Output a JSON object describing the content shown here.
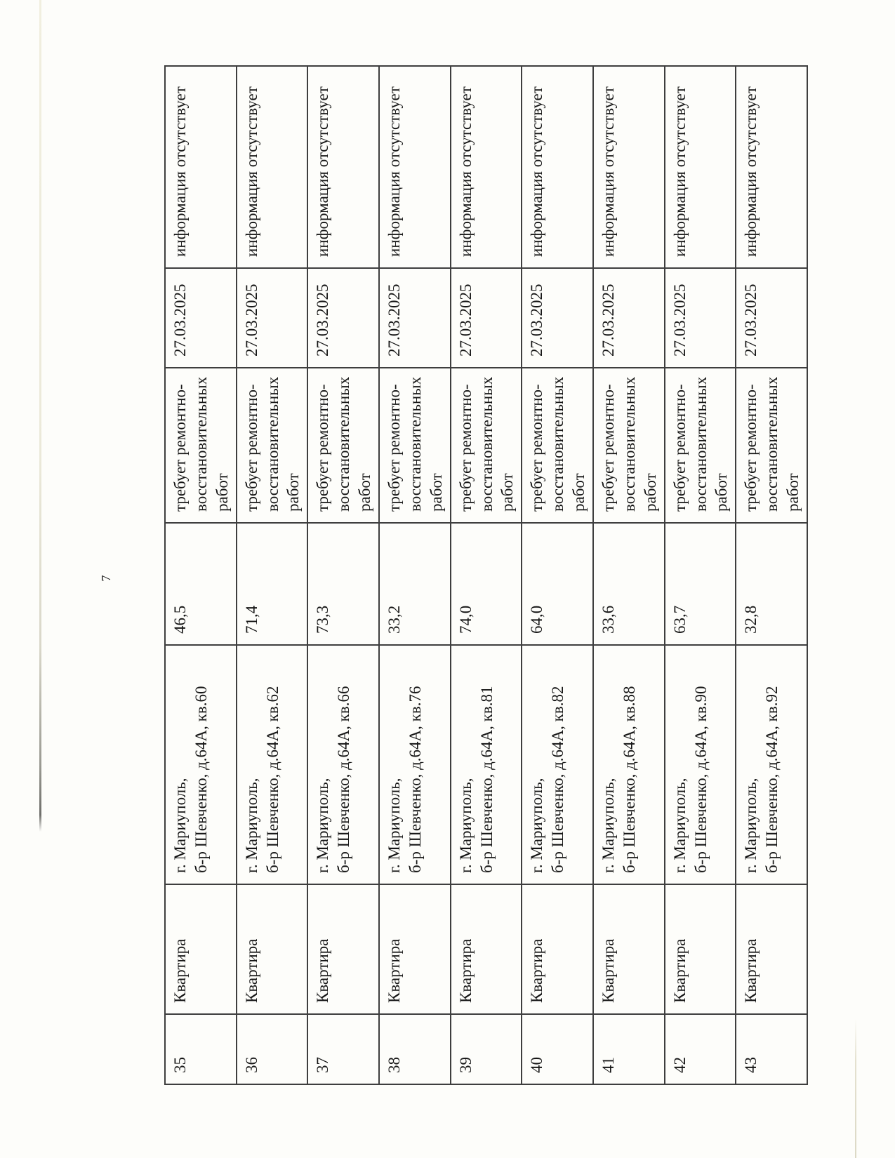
{
  "page": {
    "number": "7"
  },
  "table": {
    "rows": [
      {
        "num": "35",
        "type": "Квартира",
        "address": "г. Мариуполь,\nб-р Шевченко, д.64А, кв.60",
        "area": "46,5",
        "condition": "требует ремонтно-\nвосстановительных\nработ",
        "date": "27.03.2025",
        "info": "информация отсутствует"
      },
      {
        "num": "36",
        "type": "Квартира",
        "address": "г. Мариуполь,\nб-р Шевченко, д.64А, кв.62",
        "area": "71,4",
        "condition": "требует ремонтно-\nвосстановительных\nработ",
        "date": "27.03.2025",
        "info": "информация отсутствует"
      },
      {
        "num": "37",
        "type": "Квартира",
        "address": "г. Мариуполь,\nб-р Шевченко, д.64А, кв.66",
        "area": "73,3",
        "condition": "требует ремонтно-\nвосстановительных\nработ",
        "date": "27.03.2025",
        "info": "информация отсутствует"
      },
      {
        "num": "38",
        "type": "Квартира",
        "address": "г. Мариуполь,\nб-р Шевченко, д.64А, кв.76",
        "area": "33,2",
        "condition": "требует ремонтно-\nвосстановительных\nработ",
        "date": "27.03.2025",
        "info": "информация отсутствует"
      },
      {
        "num": "39",
        "type": "Квартира",
        "address": "г. Мариуполь,\nб-р Шевченко, д.64А, кв.81",
        "area": "74,0",
        "condition": "требует ремонтно-\nвосстановительных\nработ",
        "date": "27.03.2025",
        "info": "информация отсутствует"
      },
      {
        "num": "40",
        "type": "Квартира",
        "address": "г. Мариуполь,\nб-р Шевченко, д.64А, кв.82",
        "area": "64,0",
        "condition": "требует ремонтно-\nвосстановительных\nработ",
        "date": "27.03.2025",
        "info": "информация отсутствует"
      },
      {
        "num": "41",
        "type": "Квартира",
        "address": "г. Мариуполь,\nб-р Шевченко, д.64А, кв.88",
        "area": "33,6",
        "condition": "требует ремонтно-\nвосстановительных\nработ",
        "date": "27.03.2025",
        "info": "информация отсутствует"
      },
      {
        "num": "42",
        "type": "Квартира",
        "address": "г. Мариуполь,\nб-р Шевченко, д.64А, кв.90",
        "area": "63,7",
        "condition": "требует ремонтно-\nвосстановительных\nработ",
        "date": "27.03.2025",
        "info": "информация отсутствует"
      },
      {
        "num": "43",
        "type": "Квартира",
        "address": "г. Мариуполь,\nб-р Шевченко, д.64А, кв.92",
        "area": "32,8",
        "condition": "требует ремонтно-\nвосстановительных\nработ",
        "date": "27.03.2025",
        "info": "информация отсутствует"
      }
    ]
  }
}
